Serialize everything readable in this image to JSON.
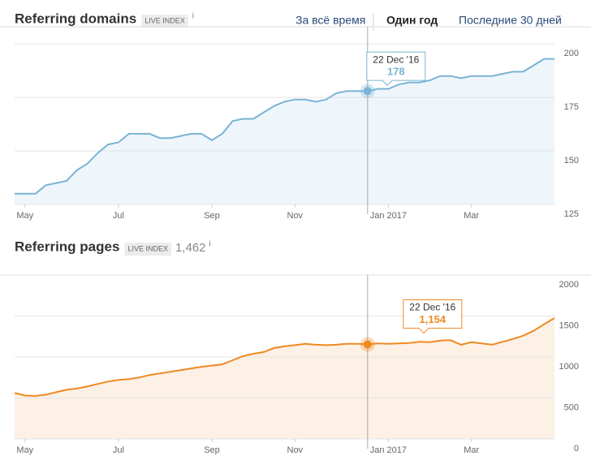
{
  "time_ranges": {
    "options": [
      "За всё время",
      "Один год",
      "Последние 30 дней"
    ],
    "selected": 1
  },
  "chart_data": [
    {
      "type": "line",
      "title": "Referring domains",
      "badge": "LIVE INDEX",
      "info": "i",
      "categories": [
        null,
        "May",
        null,
        null,
        null,
        null,
        null,
        null,
        null,
        null,
        "Jul",
        null,
        null,
        null,
        null,
        null,
        null,
        null,
        null,
        "Sep",
        null,
        null,
        null,
        null,
        null,
        null,
        null,
        "Nov",
        null,
        null,
        null,
        null,
        null,
        null,
        null,
        null,
        "Jan 2017",
        null,
        null,
        null,
        null,
        null,
        null,
        null,
        "Mar",
        null,
        null,
        null,
        null,
        null,
        null,
        null,
        null
      ],
      "series": [
        {
          "color": "#7ab3d4",
          "fill": "#eef6fc",
          "values": [
            130,
            130,
            130,
            134,
            135,
            136,
            141,
            144,
            149,
            153,
            154,
            158,
            158,
            158,
            156,
            156,
            157,
            158,
            158,
            155,
            158,
            164,
            165,
            165,
            168,
            171,
            173,
            174,
            174,
            173,
            174,
            177,
            178,
            178,
            178,
            179,
            179,
            181,
            182,
            182,
            183,
            185,
            185,
            184,
            185,
            185,
            185,
            186,
            187,
            187,
            190,
            193,
            193
          ]
        }
      ],
      "ylim": [
        125,
        208
      ],
      "yticks": [
        125,
        150,
        175,
        200
      ],
      "grid": true,
      "tooltip": {
        "date": "22 Dec '16",
        "index": 34,
        "value": 178
      }
    },
    {
      "type": "line",
      "title": "Referring pages",
      "badge": "LIVE INDEX",
      "total": "1,462",
      "info": "i",
      "categories": [
        null,
        "May",
        null,
        null,
        null,
        null,
        null,
        null,
        null,
        null,
        "Jul",
        null,
        null,
        null,
        null,
        null,
        null,
        null,
        null,
        "Sep",
        null,
        null,
        null,
        null,
        null,
        null,
        null,
        "Nov",
        null,
        null,
        null,
        null,
        null,
        null,
        null,
        null,
        "Jan 2017",
        null,
        null,
        null,
        null,
        null,
        null,
        null,
        "Mar",
        null,
        null,
        null,
        null,
        null,
        null,
        null,
        null
      ],
      "series": [
        {
          "color": "#ee8a22",
          "fill": "#fdf0e5",
          "values": [
            560,
            530,
            525,
            540,
            570,
            600,
            615,
            640,
            670,
            700,
            720,
            730,
            750,
            780,
            800,
            820,
            840,
            860,
            880,
            895,
            910,
            960,
            1010,
            1040,
            1060,
            1110,
            1130,
            1145,
            1160,
            1150,
            1145,
            1150,
            1160,
            1160,
            1154,
            1165,
            1160,
            1165,
            1170,
            1185,
            1180,
            1200,
            1205,
            1150,
            1180,
            1165,
            1150,
            1185,
            1220,
            1260,
            1320,
            1400,
            1475
          ]
        }
      ],
      "ylim": [
        0,
        2000
      ],
      "yticks": [
        0,
        500,
        1000,
        1500,
        2000
      ],
      "grid": true,
      "tooltip": {
        "date": "22 Dec '16",
        "index": 34,
        "value": 1154,
        "label": "1,154"
      }
    }
  ]
}
